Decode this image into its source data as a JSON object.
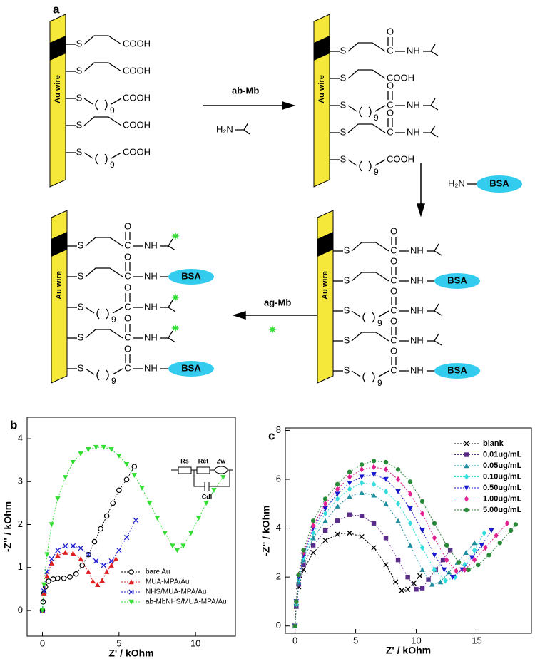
{
  "diagram": {
    "label": "a",
    "wire_label": "Au wire",
    "arrow1": {
      "above": "ab-Mb",
      "below": "H₂N"
    },
    "arrow2": {
      "amine": "H₂N",
      "group": "BSA"
    },
    "arrow3": {
      "above": "ag-Mb"
    },
    "blocks": [
      {
        "chains": [
          {
            "s": "S",
            "end": "COOH"
          },
          {
            "s": "S",
            "end": "COOH"
          },
          {
            "s": "S",
            "n": "9",
            "end": "COOH"
          },
          {
            "s": "S",
            "end": "COOH"
          },
          {
            "s": "S",
            "n": "9",
            "end": "COOH"
          }
        ]
      },
      {
        "chains": [
          {
            "s": "S",
            "c": "C",
            "o": "O",
            "nh": "NH"
          },
          {
            "s": "S",
            "end": "COOH"
          },
          {
            "s": "S",
            "n": "9",
            "c": "C",
            "o": "O",
            "nh": "NH"
          },
          {
            "s": "S",
            "c": "C",
            "o": "O",
            "nh": "NH"
          },
          {
            "s": "S",
            "n": "9",
            "end": "COOH"
          }
        ]
      },
      {
        "chains": [
          {
            "s": "S",
            "c": "C",
            "o": "O",
            "nh": "NH"
          },
          {
            "s": "S",
            "c": "C",
            "o": "O",
            "nh": "NH",
            "group": "BSA"
          },
          {
            "s": "S",
            "n": "9",
            "c": "C",
            "o": "O",
            "nh": "NH"
          },
          {
            "s": "S",
            "c": "C",
            "o": "O",
            "nh": "NH"
          },
          {
            "s": "S",
            "n": "9",
            "c": "C",
            "o": "O",
            "nh": "NH",
            "group": "BSA"
          }
        ]
      },
      {
        "chains": [
          {
            "s": "S",
            "c": "C",
            "o": "O",
            "nh": "NH"
          },
          {
            "s": "S",
            "c": "C",
            "o": "O",
            "nh": "NH",
            "group": "BSA"
          },
          {
            "s": "S",
            "n": "9",
            "c": "C",
            "o": "O",
            "nh": "NH"
          },
          {
            "s": "S",
            "c": "C",
            "o": "O",
            "nh": "NH"
          },
          {
            "s": "S",
            "n": "9",
            "c": "C",
            "o": "O",
            "nh": "NH",
            "group": "BSA"
          }
        ]
      }
    ]
  },
  "chart_data": [
    {
      "type": "line",
      "label": "b",
      "xlabel": "Z' / kOhm",
      "ylabel": "-Z'' / kOhm",
      "xlim": [
        -1,
        12.6
      ],
      "xticks": [
        0,
        5,
        10
      ],
      "ylim": [
        -0.6,
        4.5
      ],
      "yticks": [
        0,
        1,
        2,
        3,
        4
      ],
      "legend": "lower right",
      "linestyle": "dotted",
      "inset": [
        "Rs",
        "Ret",
        "Zw",
        "Cdl"
      ],
      "series": [
        {
          "name": "bare Au",
          "color": "#000000",
          "marker": "circle",
          "x": [
            0,
            0.05,
            0.1,
            0.2,
            0.4,
            0.7,
            1.0,
            1.4,
            1.8,
            2.2,
            2.6,
            3,
            3.4,
            3.8,
            4.2,
            4.6,
            5,
            5.5,
            6
          ],
          "values": [
            0,
            0.2,
            0.4,
            0.55,
            0.68,
            0.73,
            0.75,
            0.75,
            0.78,
            0.85,
            1.05,
            1.3,
            1.6,
            1.9,
            2.2,
            2.5,
            2.8,
            3.05,
            3.35
          ]
        },
        {
          "name": "MUA-MPA/Au",
          "color": "#e02020",
          "marker": "triangle",
          "x": [
            0,
            0.1,
            0.3,
            0.6,
            1,
            1.5,
            2,
            2.5,
            3,
            3.3,
            3.6,
            3.9,
            4.2,
            4.5,
            4.8
          ],
          "values": [
            0,
            0.4,
            0.8,
            1.1,
            1.28,
            1.35,
            1.33,
            1.2,
            0.9,
            0.68,
            0.6,
            0.7,
            0.9,
            1.05,
            1.2
          ]
        },
        {
          "name": "NHS/MUA-MPA/Au",
          "color": "#2020d0",
          "marker": "x",
          "x": [
            0,
            0.1,
            0.3,
            0.6,
            1,
            1.5,
            2,
            2.5,
            3,
            3.5,
            4,
            4.5,
            5,
            5.5,
            6.1
          ],
          "values": [
            0,
            0.45,
            0.9,
            1.2,
            1.4,
            1.5,
            1.5,
            1.45,
            1.3,
            1.15,
            1.05,
            1.15,
            1.4,
            1.7,
            2.1
          ]
        },
        {
          "name": "ab-MbNHS/MUA-MPA/Au",
          "color": "#33dd33",
          "marker": "triangle-down",
          "x": [
            0,
            0.1,
            0.3,
            0.6,
            1,
            1.5,
            2,
            2.5,
            3,
            3.5,
            4,
            4.5,
            5,
            5.5,
            6,
            6.5,
            7,
            7.5,
            8,
            8.5,
            8.8,
            9.2,
            9.7,
            10.2,
            10.7,
            11.2,
            11.8
          ],
          "values": [
            0,
            0.6,
            1.3,
            2.0,
            2.6,
            3.1,
            3.45,
            3.65,
            3.75,
            3.8,
            3.8,
            3.75,
            3.6,
            3.4,
            3.15,
            2.85,
            2.5,
            2.15,
            1.8,
            1.5,
            1.4,
            1.5,
            1.8,
            2.15,
            2.5,
            2.8,
            3.1
          ]
        }
      ]
    },
    {
      "type": "line",
      "label": "c",
      "xlabel": "Z' / kOhm",
      "ylabel": "-Z'' / kOhm",
      "xlim": [
        -0.8,
        19.5
      ],
      "xticks": [
        0,
        5,
        10,
        15
      ],
      "ylim": [
        -0.3,
        8.1
      ],
      "yticks": [
        0,
        2,
        4,
        6,
        8
      ],
      "legend": "upper right",
      "linestyle": "dotted",
      "series": [
        {
          "name": "blank",
          "color": "#000000",
          "marker": "x",
          "x": [
            0,
            0.1,
            0.3,
            0.7,
            1.5,
            2.5,
            3.5,
            4.5,
            5.5,
            6.5,
            7.5,
            8.3,
            8.8,
            9.3,
            9.8,
            10.3
          ],
          "values": [
            0,
            0.8,
            1.6,
            2.3,
            3.0,
            3.5,
            3.75,
            3.8,
            3.65,
            3.2,
            2.5,
            1.8,
            1.45,
            1.5,
            1.75,
            2.05
          ]
        },
        {
          "name": "0.01ug/mL",
          "color": "#5b2c8a",
          "marker": "square",
          "x": [
            0,
            0.1,
            0.3,
            0.7,
            1.5,
            2.5,
            3.5,
            4.5,
            5.5,
            6.5,
            7.5,
            8.5,
            9.3,
            10,
            10.5,
            11,
            11.6,
            12.2,
            12.8
          ],
          "values": [
            0,
            0.8,
            1.7,
            2.5,
            3.3,
            3.9,
            4.3,
            4.55,
            4.5,
            4.2,
            3.6,
            2.7,
            2.0,
            1.5,
            1.55,
            1.9,
            2.3,
            2.7,
            3.1
          ]
        },
        {
          "name": "0.05ug/mL",
          "color": "#1f8fa0",
          "marker": "triangle",
          "x": [
            0,
            0.1,
            0.3,
            0.7,
            1.5,
            2.5,
            3.5,
            4.5,
            5.5,
            6.5,
            7.5,
            8.5,
            9.5,
            10.5,
            11.3,
            12,
            12.7,
            13.4,
            14.1,
            14.8
          ],
          "values": [
            0,
            0.9,
            1.8,
            2.7,
            3.6,
            4.3,
            4.9,
            5.3,
            5.45,
            5.35,
            5.0,
            4.3,
            3.3,
            2.3,
            1.7,
            1.8,
            2.2,
            2.6,
            3.0,
            3.4
          ]
        },
        {
          "name": "0.10ug/mL",
          "color": "#33dddd",
          "marker": "diamond",
          "x": [
            0,
            0.1,
            0.3,
            0.7,
            1.5,
            2.5,
            3.5,
            4.5,
            5.5,
            6.5,
            7.5,
            8.5,
            9.5,
            10.5,
            11.5,
            12.4,
            13.2,
            14,
            14.8,
            15.6
          ],
          "values": [
            0,
            0.9,
            1.9,
            2.8,
            3.8,
            4.6,
            5.2,
            5.6,
            5.85,
            5.8,
            5.5,
            5.0,
            4.2,
            3.2,
            2.3,
            1.85,
            2.0,
            2.5,
            3.1,
            3.8
          ]
        },
        {
          "name": "0.50ug/mL",
          "color": "#1a1acc",
          "marker": "triangle-down",
          "x": [
            0,
            0.1,
            0.3,
            0.7,
            1.5,
            2.5,
            3.5,
            4.5,
            5.5,
            6.5,
            7.5,
            8.5,
            9.5,
            10.5,
            11.5,
            12.3,
            13,
            13.8,
            14.6,
            15.4,
            16.2
          ],
          "values": [
            0,
            1.0,
            2.0,
            2.9,
            4.0,
            4.8,
            5.4,
            5.85,
            6.1,
            6.2,
            6.0,
            5.5,
            4.8,
            3.9,
            2.9,
            2.3,
            2.0,
            2.3,
            2.8,
            3.3,
            3.9
          ]
        },
        {
          "name": "1.00ug/mL",
          "color": "#e0208f",
          "marker": "diamond",
          "x": [
            0,
            0.1,
            0.3,
            0.7,
            1.5,
            2.5,
            3.5,
            4.5,
            5.5,
            6.5,
            7.5,
            8.5,
            9.5,
            10.5,
            11.5,
            12.5,
            13.3,
            14,
            14.8,
            15.7,
            16.6,
            17.5
          ],
          "values": [
            0,
            1.0,
            2.1,
            3.0,
            4.1,
            5.0,
            5.6,
            6.1,
            6.4,
            6.5,
            6.4,
            6.0,
            5.4,
            4.6,
            3.6,
            2.7,
            2.25,
            2.3,
            2.7,
            3.2,
            3.7,
            4.2
          ]
        },
        {
          "name": "5.00ug/mL",
          "color": "#2a8a3a",
          "marker": "circle-filled",
          "x": [
            0,
            0.1,
            0.3,
            0.7,
            1.5,
            2.5,
            3.5,
            4.5,
            5.5,
            6.5,
            7.5,
            8.5,
            9.5,
            10.5,
            11.5,
            12.5,
            13.5,
            14.3,
            15.1,
            16,
            16.9,
            17.8,
            18.2
          ],
          "values": [
            0,
            1.0,
            2.1,
            3.1,
            4.3,
            5.2,
            5.8,
            6.3,
            6.6,
            6.75,
            6.7,
            6.4,
            5.9,
            5.1,
            4.2,
            3.3,
            2.6,
            2.3,
            2.5,
            2.9,
            3.4,
            3.9,
            4.15
          ]
        }
      ]
    }
  ]
}
